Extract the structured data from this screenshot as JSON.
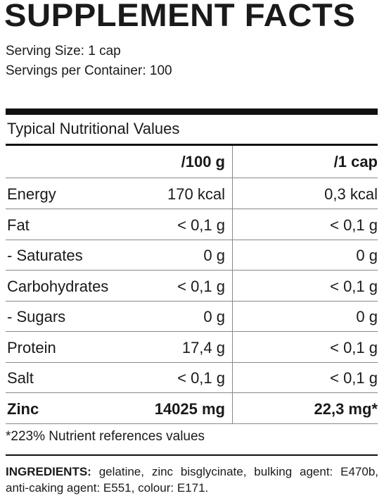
{
  "header": {
    "title": "SUPPLEMENT FACTS",
    "serving_size": "Serving Size: 1 cap",
    "servings_per_container": "Servings per Container: 100"
  },
  "table": {
    "caption": "Typical Nutritional Values",
    "columns": [
      "/100 g",
      "/1 cap"
    ],
    "rows": [
      [
        "Energy",
        "170 kcal",
        "0,3 kcal"
      ],
      [
        "Fat",
        "< 0,1 g",
        "< 0,1 g"
      ],
      [
        "- Saturates",
        "0 g",
        "0 g"
      ],
      [
        "Carbohydrates",
        "< 0,1 g",
        "< 0,1 g"
      ],
      [
        "- Sugars",
        "0 g",
        "0 g"
      ],
      [
        "Protein",
        "17,4 g",
        "< 0,1 g"
      ],
      [
        "Salt",
        "< 0,1 g",
        "< 0,1 g"
      ],
      [
        "Zinc",
        "14025 mg",
        "22,3 mg*"
      ]
    ]
  },
  "footnote": "*223% Nutrient references values",
  "ingredients": {
    "label": "INGREDIENTS:",
    "text": "gelatine, zinc bisglycinate, bulking agent: E470b, anti-caking agent: E551, colour: E171."
  }
}
